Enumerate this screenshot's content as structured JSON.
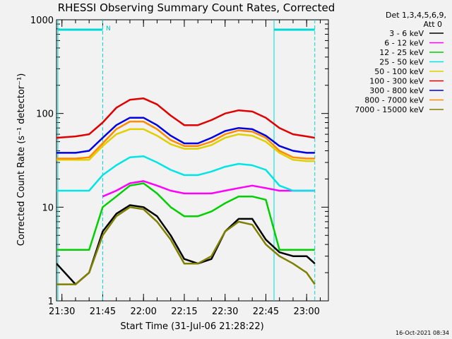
{
  "chart_data": {
    "type": "line",
    "title": "RHESSI Observing Summary Count Rates, Corrected",
    "xlabel": "Start Time (31-Jul-06 21:28:22)",
    "ylabel": "Corrected Count Rate (s⁻¹ detector⁻¹)",
    "yscale": "log",
    "xlim": [
      "21:28",
      "23:08"
    ],
    "ylim": [
      1,
      1000
    ],
    "x_ticks": [
      "21:30",
      "21:45",
      "22:00",
      "22:15",
      "22:30",
      "22:45",
      "23:00"
    ],
    "y_ticks": [
      "1",
      "10",
      "100",
      "1000"
    ],
    "legend": {
      "header": "Det 1,3,4,5,6,9,",
      "subheader": "Att 0",
      "position": "top-right"
    },
    "attenuator_marker": "N",
    "footer_timestamp": "16-Oct-2021 08:34",
    "series": [
      {
        "name": "3 - 6 keV",
        "color": "#000000",
        "times": [
          "21:28",
          "21:35",
          "21:40",
          "21:45",
          "21:50",
          "21:55",
          "22:00",
          "22:05",
          "22:10",
          "22:15",
          "22:20",
          "22:25",
          "22:30",
          "22:35",
          "22:40",
          "22:45",
          "22:50",
          "22:55",
          "23:00",
          "23:03"
        ],
        "values": [
          2.5,
          1.5,
          2.0,
          5.5,
          8.5,
          10.5,
          10.0,
          8.0,
          5.0,
          2.8,
          2.5,
          2.8,
          5.5,
          7.5,
          7.5,
          4.5,
          3.3,
          3.0,
          3.0,
          2.5
        ]
      },
      {
        "name": "6 - 12 keV",
        "color": "#ff00ff",
        "times": [
          "21:28",
          "21:40",
          "21:45",
          "21:50",
          "21:55",
          "22:00",
          "22:05",
          "22:10",
          "22:15",
          "22:20",
          "22:25",
          "22:30",
          "22:35",
          "22:40",
          "22:45",
          "22:50",
          "22:55",
          "23:00",
          "23:03"
        ],
        "values": [
          null,
          null,
          13,
          15,
          18,
          19,
          17,
          15,
          14,
          14,
          14,
          15,
          16,
          17,
          16,
          15,
          15,
          15,
          15
        ]
      },
      {
        "name": "12 - 25 keV",
        "color": "#00d000",
        "times": [
          "21:28",
          "21:35",
          "21:40",
          "21:45",
          "21:50",
          "21:55",
          "22:00",
          "22:05",
          "22:10",
          "22:15",
          "22:20",
          "22:25",
          "22:30",
          "22:35",
          "22:40",
          "22:45",
          "22:50",
          "22:55",
          "23:00",
          "23:03"
        ],
        "values": [
          3.5,
          3.5,
          3.5,
          10,
          13,
          17,
          18,
          14,
          10,
          8,
          8,
          9,
          11,
          13,
          13,
          12,
          3.5,
          3.5,
          3.5,
          3.5
        ]
      },
      {
        "name": "25 - 50 keV",
        "color": "#00e5e5",
        "times": [
          "21:28",
          "21:35",
          "21:40",
          "21:45",
          "21:50",
          "21:55",
          "22:00",
          "22:05",
          "22:10",
          "22:15",
          "22:20",
          "22:25",
          "22:30",
          "22:35",
          "22:40",
          "22:45",
          "22:50",
          "22:55",
          "23:00",
          "23:03"
        ],
        "values": [
          15,
          15,
          15,
          22,
          28,
          34,
          35,
          30,
          25,
          22,
          22,
          24,
          27,
          29,
          28,
          25,
          17,
          15,
          15,
          15
        ]
      },
      {
        "name": "50 - 100 keV",
        "color": "#e0d000",
        "times": [
          "21:28",
          "21:35",
          "21:40",
          "21:45",
          "21:50",
          "21:55",
          "22:00",
          "22:05",
          "22:10",
          "22:15",
          "22:20",
          "22:25",
          "22:30",
          "22:35",
          "22:40",
          "22:45",
          "22:50",
          "22:55",
          "23:00",
          "23:03"
        ],
        "values": [
          32,
          32,
          32,
          45,
          60,
          68,
          68,
          58,
          47,
          42,
          42,
          46,
          55,
          60,
          58,
          50,
          38,
          32,
          31,
          31
        ]
      },
      {
        "name": "100 - 300 keV",
        "color": "#e00000",
        "times": [
          "21:28",
          "21:35",
          "21:40",
          "21:45",
          "21:50",
          "21:55",
          "22:00",
          "22:05",
          "22:10",
          "22:15",
          "22:20",
          "22:25",
          "22:30",
          "22:35",
          "22:40",
          "22:45",
          "22:50",
          "22:55",
          "23:00",
          "23:03"
        ],
        "values": [
          55,
          57,
          60,
          80,
          115,
          140,
          145,
          125,
          95,
          75,
          75,
          85,
          100,
          108,
          105,
          90,
          70,
          60,
          57,
          55
        ]
      },
      {
        "name": "300 - 800 keV",
        "color": "#0000e0",
        "times": [
          "21:28",
          "21:35",
          "21:40",
          "21:45",
          "21:50",
          "21:55",
          "22:00",
          "22:05",
          "22:10",
          "22:15",
          "22:20",
          "22:25",
          "22:30",
          "22:35",
          "22:40",
          "22:45",
          "22:50",
          "22:55",
          "23:00",
          "23:03"
        ],
        "values": [
          38,
          38,
          40,
          55,
          75,
          90,
          90,
          75,
          58,
          48,
          48,
          55,
          65,
          70,
          68,
          58,
          45,
          40,
          38,
          38
        ]
      },
      {
        "name": "800 - 7000 keV",
        "color": "#ff8c00",
        "times": [
          "21:28",
          "21:35",
          "21:40",
          "21:45",
          "21:50",
          "21:55",
          "22:00",
          "22:05",
          "22:10",
          "22:15",
          "22:20",
          "22:25",
          "22:30",
          "22:35",
          "22:40",
          "22:45",
          "22:50",
          "22:55",
          "23:00",
          "23:03"
        ],
        "values": [
          33,
          33,
          34,
          48,
          68,
          82,
          82,
          68,
          52,
          45,
          45,
          50,
          60,
          66,
          64,
          55,
          40,
          34,
          33,
          33
        ]
      },
      {
        "name": "7000 - 15000 keV",
        "color": "#808000",
        "times": [
          "21:28",
          "21:35",
          "21:40",
          "21:45",
          "21:50",
          "21:55",
          "22:00",
          "22:05",
          "22:10",
          "22:15",
          "22:20",
          "22:25",
          "22:30",
          "22:35",
          "22:40",
          "22:45",
          "22:50",
          "22:55",
          "23:00",
          "23:03"
        ],
        "values": [
          1.5,
          1.5,
          2.0,
          5.0,
          8.0,
          10.0,
          9.5,
          7.0,
          4.5,
          2.5,
          2.5,
          3.0,
          5.5,
          7.0,
          6.5,
          4.0,
          3.0,
          2.5,
          2.0,
          1.5
        ]
      }
    ]
  }
}
